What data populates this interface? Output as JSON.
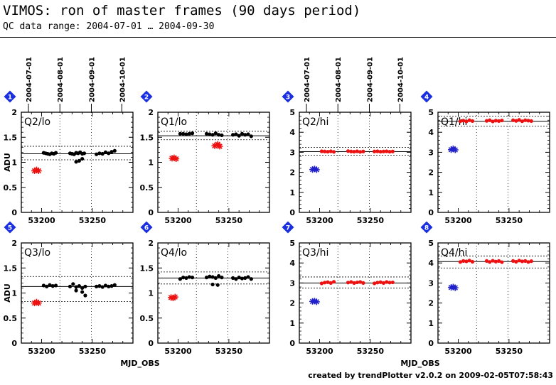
{
  "page": {
    "title": "VIMOS: ron of master frames (90 days period)",
    "subtitle": "QC data range: 2004-07-01 … 2004-09-30",
    "footer": "created by trendPlotter v2.0.2 on 2009-02-05T07:58:43"
  },
  "colors": {
    "black": "#000000",
    "red": "#ee1111",
    "blue": "#2222cc",
    "badge": "#1a2fe0"
  },
  "chart_data": {
    "type": "scatter",
    "xlabel": "MJD_OBS",
    "ylabel": "ADU",
    "xlim": [
      53180,
      53290
    ],
    "x_ticks": [
      53200,
      53250
    ],
    "date_ticks": [
      {
        "label": "2004-07-01",
        "mjd": 53187
      },
      {
        "label": "2004-08-01",
        "mjd": 53218
      },
      {
        "label": "2004-09-01",
        "mjd": 53249
      },
      {
        "label": "2004-10-01",
        "mjd": 53279
      }
    ],
    "panels": [
      {
        "id": "1",
        "label": "Q2/lo",
        "ylim": [
          0,
          2
        ],
        "yticks": [
          "0",
          "0.5",
          "1",
          "1.5",
          "2"
        ],
        "ref_line": 1.17,
        "ref_band": [
          1.05,
          1.32
        ],
        "series": [
          {
            "color": "black",
            "marker": "dot",
            "points": [
              [
                53202,
                1.19
              ],
              [
                53204,
                1.18
              ],
              [
                53206,
                1.17
              ],
              [
                53208,
                1.16
              ],
              [
                53210,
                1.18
              ],
              [
                53212,
                1.17
              ],
              [
                53214,
                1.19
              ],
              [
                53228,
                1.18
              ],
              [
                53230,
                1.17
              ],
              [
                53232,
                1.16
              ],
              [
                53234,
                1.19
              ],
              [
                53236,
                1.18
              ],
              [
                53238,
                1.2
              ],
              [
                53240,
                1.17
              ],
              [
                53242,
                1.18
              ],
              [
                53234,
                1.01
              ],
              [
                53237,
                1.03
              ],
              [
                53240,
                1.07
              ],
              [
                53254,
                1.16
              ],
              [
                53257,
                1.18
              ],
              [
                53260,
                1.17
              ],
              [
                53263,
                1.2
              ],
              [
                53266,
                1.18
              ],
              [
                53269,
                1.21
              ],
              [
                53272,
                1.23
              ]
            ]
          },
          {
            "color": "red",
            "marker": "star",
            "points": [
              [
                53193,
                0.83
              ],
              [
                53195,
                0.85
              ],
              [
                53197,
                0.83
              ]
            ]
          }
        ]
      },
      {
        "id": "2",
        "label": "Q1/lo",
        "ylim": [
          0,
          2
        ],
        "yticks": [
          "0",
          "0.5",
          "1",
          "1.5",
          "2"
        ],
        "ref_line": 1.53,
        "ref_band": [
          1.45,
          1.62
        ],
        "series": [
          {
            "color": "black",
            "marker": "dot",
            "points": [
              [
                53202,
                1.57
              ],
              [
                53205,
                1.57
              ],
              [
                53208,
                1.56
              ],
              [
                53211,
                1.57
              ],
              [
                53214,
                1.58
              ],
              [
                53228,
                1.57
              ],
              [
                53231,
                1.56
              ],
              [
                53234,
                1.55
              ],
              [
                53237,
                1.58
              ],
              [
                53240,
                1.55
              ],
              [
                53243,
                1.54
              ],
              [
                53254,
                1.55
              ],
              [
                53257,
                1.56
              ],
              [
                53260,
                1.53
              ],
              [
                53263,
                1.57
              ],
              [
                53266,
                1.55
              ],
              [
                53269,
                1.56
              ],
              [
                53272,
                1.52
              ]
            ]
          },
          {
            "color": "red",
            "marker": "star",
            "points": [
              [
                53194,
                1.08
              ],
              [
                53196,
                1.09
              ],
              [
                53198,
                1.07
              ],
              [
                53236,
                1.33
              ],
              [
                53239,
                1.36
              ],
              [
                53241,
                1.32
              ]
            ]
          }
        ]
      },
      {
        "id": "3",
        "label": "Q2/hi",
        "ylim": [
          0,
          5
        ],
        "yticks": [
          "0",
          "1",
          "2",
          "3",
          "4",
          "5"
        ],
        "ref_line": 3.03,
        "ref_band": [
          2.85,
          3.25
        ],
        "series": [
          {
            "color": "red",
            "marker": "dot",
            "points": [
              [
                53202,
                3.05
              ],
              [
                53205,
                3.04
              ],
              [
                53208,
                3.03
              ],
              [
                53211,
                3.05
              ],
              [
                53214,
                3.02
              ],
              [
                53228,
                3.06
              ],
              [
                53231,
                3.04
              ],
              [
                53234,
                3.03
              ],
              [
                53237,
                3.05
              ],
              [
                53240,
                3.02
              ],
              [
                53243,
                3.04
              ],
              [
                53254,
                3.04
              ],
              [
                53257,
                3.05
              ],
              [
                53260,
                3.03
              ],
              [
                53263,
                3.04
              ],
              [
                53266,
                3.05
              ],
              [
                53269,
                3.03
              ],
              [
                53272,
                3.04
              ]
            ]
          },
          {
            "color": "blue",
            "marker": "star",
            "points": [
              [
                53193,
                2.14
              ],
              [
                53195,
                2.17
              ],
              [
                53197,
                2.13
              ]
            ]
          }
        ]
      },
      {
        "id": "4",
        "label": "Q1/hi",
        "ylim": [
          0,
          5
        ],
        "yticks": [
          "0",
          "1",
          "2",
          "3",
          "4",
          "5"
        ],
        "ref_line": 4.55,
        "ref_band": [
          4.3,
          4.8
        ],
        "series": [
          {
            "color": "red",
            "marker": "dot",
            "points": [
              [
                53202,
                4.55
              ],
              [
                53205,
                4.58
              ],
              [
                53208,
                4.54
              ],
              [
                53211,
                4.6
              ],
              [
                53214,
                4.56
              ],
              [
                53228,
                4.57
              ],
              [
                53231,
                4.6
              ],
              [
                53234,
                4.54
              ],
              [
                53237,
                4.58
              ],
              [
                53240,
                4.56
              ],
              [
                53243,
                4.59
              ],
              [
                53254,
                4.6
              ],
              [
                53257,
                4.57
              ],
              [
                53260,
                4.62
              ],
              [
                53263,
                4.55
              ],
              [
                53266,
                4.6
              ],
              [
                53269,
                4.58
              ],
              [
                53272,
                4.56
              ]
            ]
          },
          {
            "color": "blue",
            "marker": "star",
            "points": [
              [
                53193,
                3.13
              ],
              [
                53195,
                3.18
              ],
              [
                53197,
                3.12
              ]
            ]
          }
        ]
      },
      {
        "id": "5",
        "label": "Q3/lo",
        "ylim": [
          0,
          2
        ],
        "yticks": [
          "0",
          "0.5",
          "1",
          "1.5",
          "2"
        ],
        "ref_line": 1.13,
        "ref_band": [
          0.83,
          1.33
        ],
        "series": [
          {
            "color": "black",
            "marker": "dot",
            "points": [
              [
                53202,
                1.15
              ],
              [
                53205,
                1.13
              ],
              [
                53208,
                1.16
              ],
              [
                53211,
                1.14
              ],
              [
                53214,
                1.15
              ],
              [
                53228,
                1.13
              ],
              [
                53231,
                1.18
              ],
              [
                53234,
                1.12
              ],
              [
                53237,
                1.14
              ],
              [
                53240,
                1.1
              ],
              [
                53243,
                1.13
              ],
              [
                53234,
                1.05
              ],
              [
                53240,
                1.02
              ],
              [
                53243,
                0.95
              ],
              [
                53254,
                1.13
              ],
              [
                53257,
                1.14
              ],
              [
                53260,
                1.12
              ],
              [
                53263,
                1.15
              ],
              [
                53266,
                1.13
              ],
              [
                53269,
                1.14
              ],
              [
                53272,
                1.16
              ]
            ]
          },
          {
            "color": "red",
            "marker": "star",
            "points": [
              [
                53193,
                0.8
              ],
              [
                53195,
                0.82
              ],
              [
                53197,
                0.8
              ]
            ]
          }
        ]
      },
      {
        "id": "6",
        "label": "Q4/lo",
        "ylim": [
          0,
          2
        ],
        "yticks": [
          "0",
          "0.5",
          "1",
          "1.5",
          "2"
        ],
        "ref_line": 1.3,
        "ref_band": [
          1.18,
          1.42
        ],
        "series": [
          {
            "color": "black",
            "marker": "dot",
            "points": [
              [
                53202,
                1.28
              ],
              [
                53205,
                1.31
              ],
              [
                53208,
                1.3
              ],
              [
                53211,
                1.32
              ],
              [
                53214,
                1.31
              ],
              [
                53228,
                1.31
              ],
              [
                53231,
                1.33
              ],
              [
                53234,
                1.32
              ],
              [
                53237,
                1.3
              ],
              [
                53240,
                1.34
              ],
              [
                53243,
                1.31
              ],
              [
                53234,
                1.17
              ],
              [
                53239,
                1.16
              ],
              [
                53254,
                1.3
              ],
              [
                53257,
                1.28
              ],
              [
                53260,
                1.31
              ],
              [
                53263,
                1.29
              ],
              [
                53266,
                1.3
              ],
              [
                53269,
                1.32
              ],
              [
                53272,
                1.28
              ]
            ]
          },
          {
            "color": "red",
            "marker": "star",
            "points": [
              [
                53193,
                0.91
              ],
              [
                53195,
                0.9
              ],
              [
                53197,
                0.92
              ]
            ]
          }
        ]
      },
      {
        "id": "7",
        "label": "Q3/hi",
        "ylim": [
          0,
          5
        ],
        "yticks": [
          "0",
          "1",
          "2",
          "3",
          "4",
          "5"
        ],
        "ref_line": 3.0,
        "ref_band": [
          2.75,
          3.3
        ],
        "series": [
          {
            "color": "red",
            "marker": "dot",
            "points": [
              [
                53202,
                2.98
              ],
              [
                53205,
                3.02
              ],
              [
                53208,
                3.04
              ],
              [
                53211,
                3.0
              ],
              [
                53214,
                3.06
              ],
              [
                53228,
                3.02
              ],
              [
                53231,
                3.05
              ],
              [
                53234,
                3.0
              ],
              [
                53237,
                3.03
              ],
              [
                53240,
                3.05
              ],
              [
                53243,
                3.0
              ],
              [
                53254,
                2.98
              ],
              [
                53257,
                3.02
              ],
              [
                53260,
                3.04
              ],
              [
                53263,
                3.0
              ],
              [
                53266,
                3.05
              ],
              [
                53269,
                3.02
              ],
              [
                53272,
                3.03
              ]
            ]
          },
          {
            "color": "blue",
            "marker": "star",
            "points": [
              [
                53193,
                2.08
              ],
              [
                53195,
                2.1
              ],
              [
                53197,
                2.06
              ]
            ]
          }
        ]
      },
      {
        "id": "8",
        "label": "Q4/hi",
        "ylim": [
          0,
          5
        ],
        "yticks": [
          "0",
          "1",
          "2",
          "3",
          "4",
          "5"
        ],
        "ref_line": 4.07,
        "ref_band": [
          3.75,
          4.35
        ],
        "series": [
          {
            "color": "red",
            "marker": "dot",
            "points": [
              [
                53202,
                4.05
              ],
              [
                53205,
                4.1
              ],
              [
                53208,
                4.08
              ],
              [
                53211,
                4.12
              ],
              [
                53214,
                4.06
              ],
              [
                53228,
                4.1
              ],
              [
                53231,
                4.05
              ],
              [
                53234,
                4.11
              ],
              [
                53237,
                4.07
              ],
              [
                53240,
                4.1
              ],
              [
                53243,
                4.04
              ],
              [
                53254,
                4.1
              ],
              [
                53257,
                4.06
              ],
              [
                53260,
                4.12
              ],
              [
                53263,
                4.08
              ],
              [
                53266,
                4.1
              ],
              [
                53269,
                4.05
              ],
              [
                53272,
                4.09
              ]
            ]
          },
          {
            "color": "blue",
            "marker": "star",
            "points": [
              [
                53193,
                2.78
              ],
              [
                53195,
                2.8
              ],
              [
                53197,
                2.76
              ]
            ]
          }
        ]
      }
    ]
  }
}
